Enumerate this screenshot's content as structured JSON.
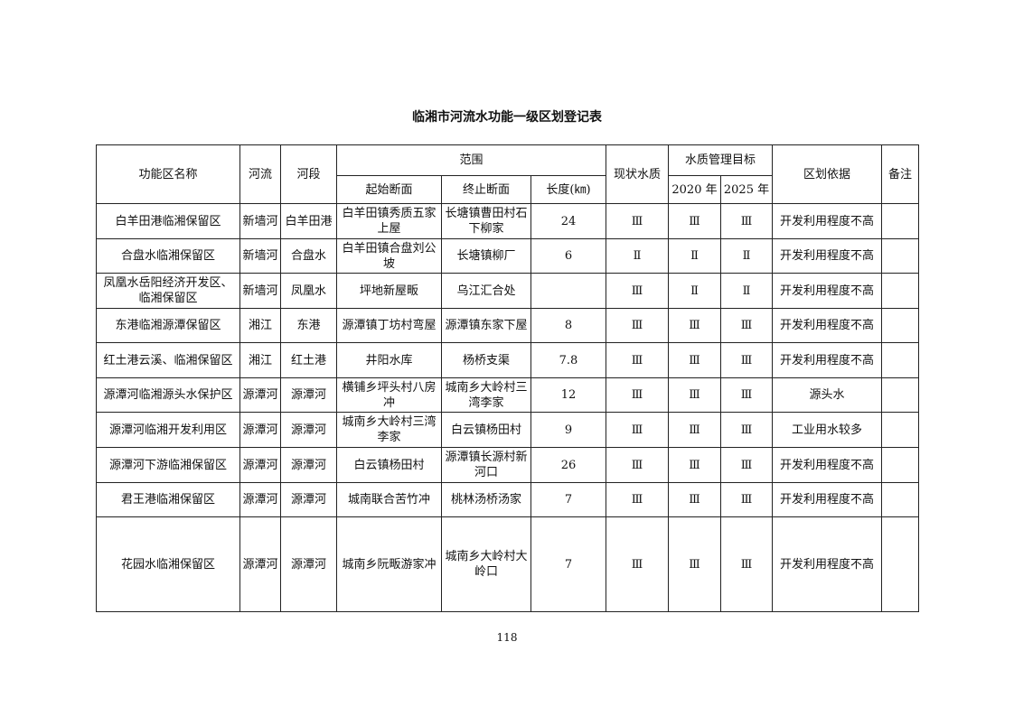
{
  "title": "临湘市河流水功能一级区划登记表",
  "headers": {
    "name": "功能区名称",
    "river": "河流",
    "segment": "河段",
    "range": "范围",
    "start": "起始断面",
    "end": "终止断面",
    "length": "长度(㎞)",
    "current": "现状水质",
    "target": "水质管理目标",
    "y2020": "2020 年",
    "y2025": "2025 年",
    "basis": "区划依据",
    "remark": "备注"
  },
  "rows": [
    [
      "白羊田港临湘保留区",
      "新墙河",
      "白羊田港",
      "白羊田镇秀质五家上屋",
      "长塘镇曹田村石下柳家",
      "24",
      "Ⅲ",
      "Ⅲ",
      "Ⅲ",
      "开发利用程度不高",
      ""
    ],
    [
      "合盘水临湘保留区",
      "新墙河",
      "合盘水",
      "白羊田镇合盘刘公坡",
      "长塘镇柳厂",
      "6",
      "Ⅱ",
      "Ⅱ",
      "Ⅱ",
      "开发利用程度不高",
      ""
    ],
    [
      "凤凰水岳阳经济开发区、临湘保留区",
      "新墙河",
      "凤凰水",
      "坪地新屋畈",
      "乌江汇合处",
      "",
      "Ⅲ",
      "Ⅱ",
      "Ⅱ",
      "开发利用程度不高",
      ""
    ],
    [
      "东港临湘源潭保留区",
      "湘江",
      "东港",
      "源潭镇丁坊村弯屋",
      "源潭镇东家下屋",
      "8",
      "Ⅲ",
      "Ⅲ",
      "Ⅲ",
      "开发利用程度不高",
      ""
    ],
    [
      "红土港云溪、临湘保留区",
      "湘江",
      "红土港",
      "井阳水库",
      "杨桥支渠",
      "7.8",
      "Ⅲ",
      "Ⅲ",
      "Ⅲ",
      "开发利用程度不高",
      ""
    ],
    [
      "源潭河临湘源头水保护区",
      "源潭河",
      "源潭河",
      "横铺乡坪头村八房冲",
      "城南乡大岭村三湾李家",
      "12",
      "Ⅲ",
      "Ⅲ",
      "Ⅲ",
      "源头水",
      ""
    ],
    [
      "源潭河临湘开发利用区",
      "源潭河",
      "源潭河",
      "城南乡大岭村三湾李家",
      "白云镇杨田村",
      "9",
      "Ⅲ",
      "Ⅲ",
      "Ⅲ",
      "工业用水较多",
      ""
    ],
    [
      "源潭河下游临湘保留区",
      "源潭河",
      "源潭河",
      "白云镇杨田村",
      "源潭镇长源村新河口",
      "26",
      "Ⅲ",
      "Ⅲ",
      "Ⅲ",
      "开发利用程度不高",
      ""
    ],
    [
      "君王港临湘保留区",
      "源潭河",
      "源潭河",
      "城南联合苦竹冲",
      "桃林汤桥汤家",
      "7",
      "Ⅲ",
      "Ⅲ",
      "Ⅲ",
      "开发利用程度不高",
      ""
    ],
    [
      "花园水临湘保留区",
      "源潭河",
      "源潭河",
      "城南乡阮畈游家冲",
      "城南乡大岭村大岭口",
      "7",
      "Ⅲ",
      "Ⅲ",
      "Ⅲ",
      "开发利用程度不高",
      ""
    ]
  ],
  "page_number": "118"
}
